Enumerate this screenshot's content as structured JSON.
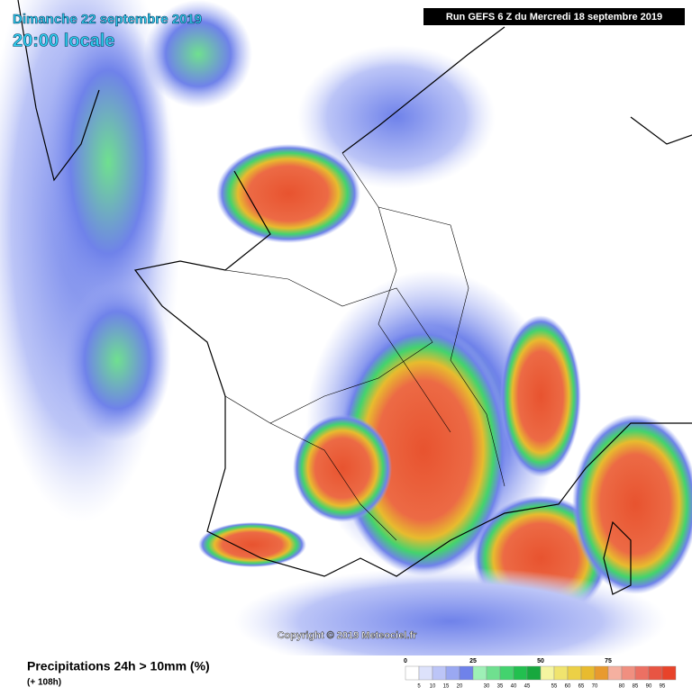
{
  "header": {
    "date": "Dimanche 22 septembre 2019",
    "time": "20:00 locale",
    "run": "Run GEFS 6 Z du Mercredi 18 septembre 2019"
  },
  "footer": {
    "title": "Precipitations 24h > 10mm (%)",
    "lead": "(+ 108h)",
    "copyright": "Copyright © 2019 Meteociel.fr"
  },
  "legend": {
    "major": [
      0,
      25,
      50,
      75
    ],
    "minor": [
      5,
      10,
      15,
      20,
      30,
      35,
      40,
      45,
      55,
      60,
      65,
      70,
      80,
      85,
      90,
      95
    ],
    "colors": [
      "#ffffff",
      "#dde2fb",
      "#bcc5f7",
      "#9aa8f2",
      "#6f82ea",
      "#9ef0b6",
      "#6fe08f",
      "#43d36e",
      "#22c04f",
      "#17a83e",
      "#f5f5a0",
      "#f0e46e",
      "#ecd046",
      "#e8bb2e",
      "#e89a2e",
      "#f5b0a0",
      "#f08f80",
      "#ec7063",
      "#e85543",
      "#e8432a"
    ]
  }
}
